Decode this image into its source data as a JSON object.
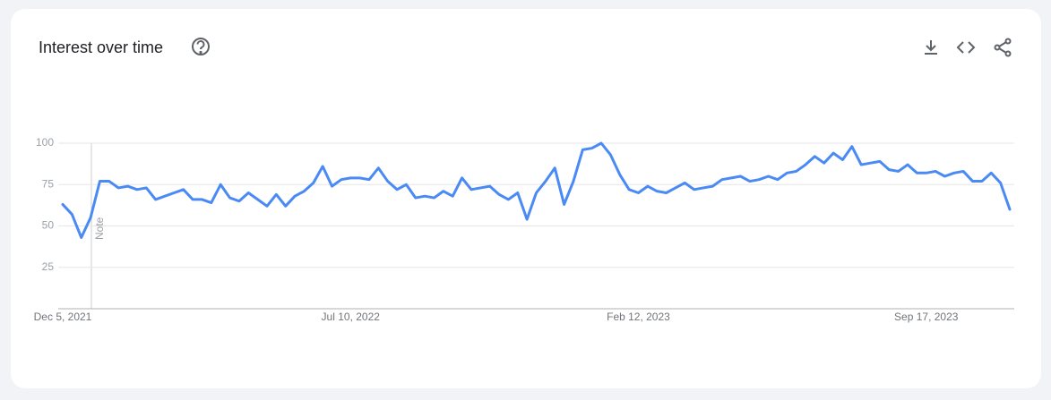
{
  "chart_data": {
    "type": "line",
    "title": "Interest over time",
    "annotation": "Note",
    "categories": [
      "Dec 5, 2021",
      null,
      null,
      null,
      null,
      null,
      null,
      null,
      null,
      null,
      null,
      null,
      null,
      null,
      null,
      null,
      null,
      null,
      null,
      null,
      null,
      null,
      null,
      null,
      null,
      null,
      null,
      null,
      null,
      null,
      null,
      "Jul 10, 2022",
      null,
      null,
      null,
      null,
      null,
      null,
      null,
      null,
      null,
      null,
      null,
      null,
      null,
      null,
      null,
      null,
      null,
      null,
      null,
      null,
      null,
      null,
      null,
      null,
      null,
      null,
      null,
      null,
      null,
      null,
      "Feb 12, 2023",
      null,
      null,
      null,
      null,
      null,
      null,
      null,
      null,
      null,
      null,
      null,
      null,
      null,
      null,
      null,
      null,
      null,
      null,
      null,
      null,
      null,
      null,
      null,
      null,
      null,
      null,
      null,
      null,
      null,
      null,
      "Sep 17, 2023",
      null,
      null,
      null,
      null,
      null,
      null,
      null,
      null,
      null
    ],
    "values": [
      63,
      57,
      43,
      55,
      77,
      77,
      73,
      74,
      72,
      73,
      66,
      68,
      70,
      72,
      66,
      66,
      64,
      75,
      67,
      65,
      70,
      66,
      62,
      69,
      62,
      68,
      71,
      76,
      86,
      74,
      78,
      79,
      79,
      78,
      85,
      77,
      72,
      75,
      67,
      68,
      67,
      71,
      68,
      79,
      72,
      73,
      74,
      69,
      66,
      70,
      54,
      70,
      77,
      85,
      63,
      77,
      96,
      97,
      100,
      93,
      81,
      72,
      70,
      74,
      71,
      70,
      73,
      76,
      72,
      73,
      74,
      78,
      79,
      80,
      77,
      78,
      80,
      78,
      82,
      83,
      87,
      92,
      88,
      94,
      90,
      98,
      87,
      88,
      89,
      84,
      83,
      87,
      82,
      82,
      83,
      80,
      82,
      83,
      77,
      77,
      82,
      76,
      60
    ],
    "color": "#4a8af4",
    "ylim": [
      0,
      100
    ],
    "yticks": [
      25,
      50,
      75,
      100
    ],
    "grid": true
  }
}
